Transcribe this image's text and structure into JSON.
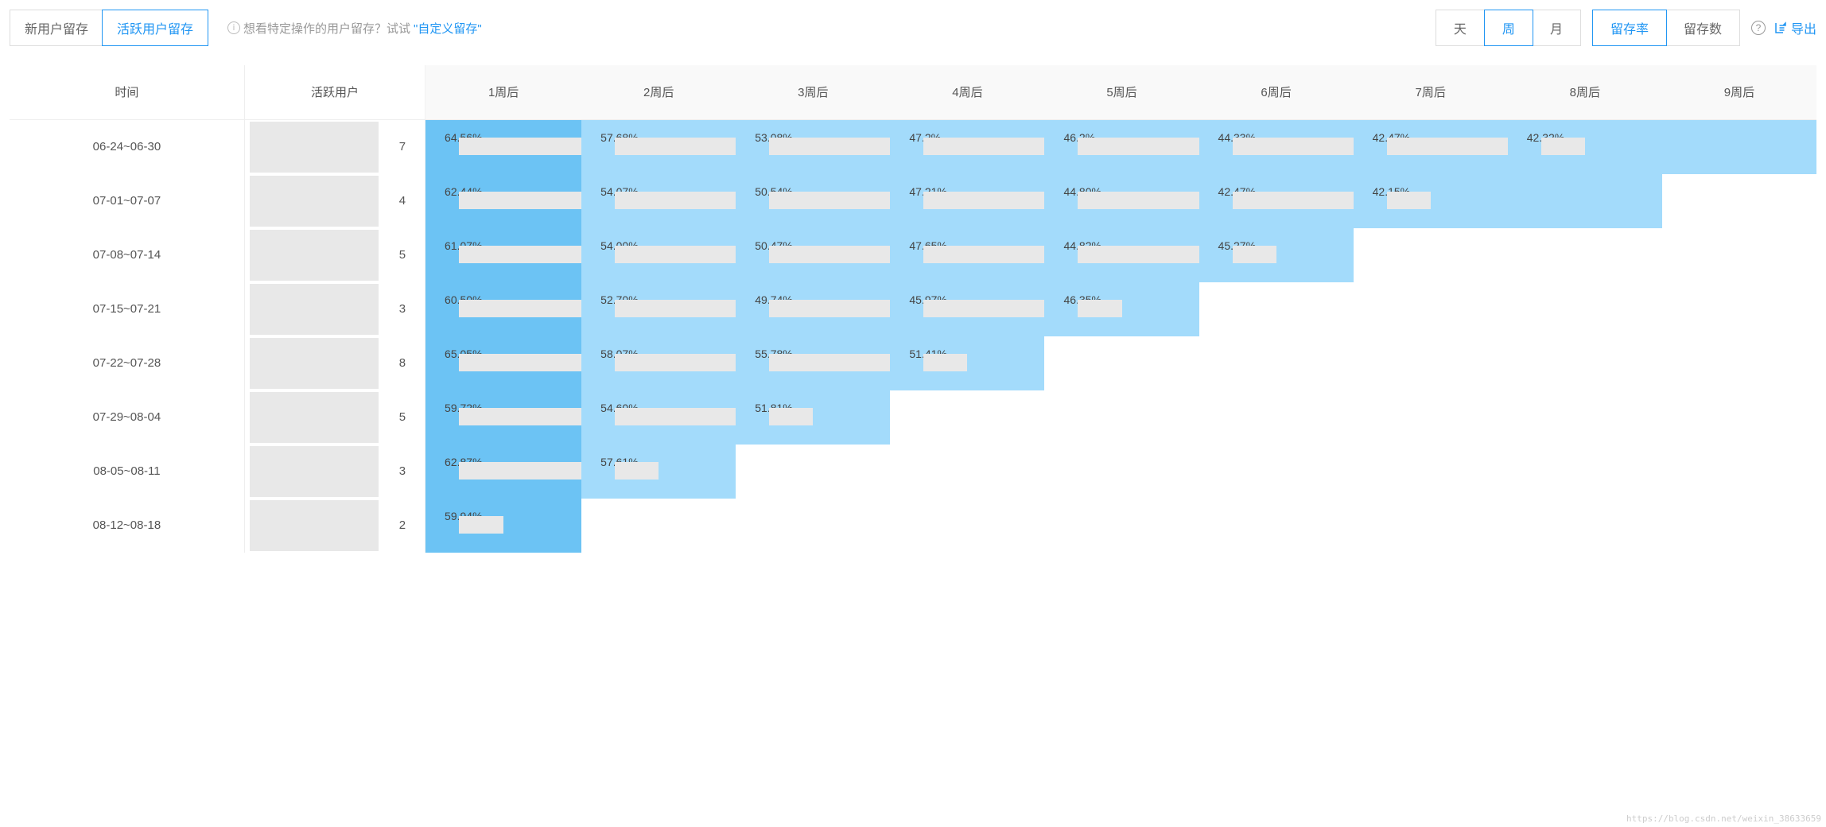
{
  "tabs": {
    "new": "新用户留存",
    "active": "活跃用户留存",
    "selected": "active"
  },
  "hint": {
    "text": "想看特定操作的用户留存？试试",
    "link": "\"自定义留存\""
  },
  "period": {
    "day": "天",
    "week": "周",
    "month": "月",
    "selected": "week"
  },
  "metric": {
    "rate": "留存率",
    "count": "留存数",
    "selected": "rate"
  },
  "export_label": "导出",
  "headers": {
    "time": "时间",
    "users": "活跃用户",
    "weeks": [
      "1周后",
      "2周后",
      "3周后",
      "4周后",
      "5周后",
      "6周后",
      "7周后",
      "8周后",
      "9周后"
    ]
  },
  "colors": {
    "dark": "#6cc3f4",
    "light": "#a3dbfb",
    "mask": "#e8e8e8"
  },
  "rows": [
    {
      "time": "06-24~06-30",
      "users_suffix": "7",
      "cells": [
        {
          "v": "64.56%",
          "shade": "dark",
          "mask": true,
          "maskEnd": false
        },
        {
          "v": "57.68%",
          "shade": "light",
          "mask": true,
          "maskEnd": false
        },
        {
          "v": "53.08%",
          "shade": "light",
          "mask": true,
          "maskEnd": false
        },
        {
          "v": "47.2%",
          "shade": "light",
          "mask": true,
          "maskEnd": false
        },
        {
          "v": "46.2%",
          "shade": "light",
          "mask": true,
          "maskEnd": false
        },
        {
          "v": "44.33%",
          "shade": "light",
          "mask": true,
          "maskEnd": false
        },
        {
          "v": "42.47%",
          "shade": "light",
          "mask": true,
          "maskEnd": false
        },
        {
          "v": "42.32%",
          "shade": "light",
          "mask": true,
          "maskEnd": true
        },
        {
          "v": "",
          "shade": "light",
          "mask": false
        }
      ]
    },
    {
      "time": "07-01~07-07",
      "users_suffix": "4",
      "cells": [
        {
          "v": "62.44%",
          "shade": "dark",
          "mask": true,
          "maskEnd": false
        },
        {
          "v": "54.07%",
          "shade": "light",
          "mask": true,
          "maskEnd": false
        },
        {
          "v": "50.54%",
          "shade": "light",
          "mask": true,
          "maskEnd": false
        },
        {
          "v": "47.21%",
          "shade": "light",
          "mask": true,
          "maskEnd": false
        },
        {
          "v": "44.80%",
          "shade": "light",
          "mask": true,
          "maskEnd": false
        },
        {
          "v": "42.47%",
          "shade": "light",
          "mask": true,
          "maskEnd": false
        },
        {
          "v": "42.15%",
          "shade": "light",
          "mask": true,
          "maskEnd": true
        },
        {
          "v": "",
          "shade": "light",
          "mask": false
        }
      ]
    },
    {
      "time": "07-08~07-14",
      "users_suffix": "5",
      "cells": [
        {
          "v": "61.07%",
          "shade": "dark",
          "mask": true,
          "maskEnd": false
        },
        {
          "v": "54.00%",
          "shade": "light",
          "mask": true,
          "maskEnd": false
        },
        {
          "v": "50.47%",
          "shade": "light",
          "mask": true,
          "maskEnd": false
        },
        {
          "v": "47.65%",
          "shade": "light",
          "mask": true,
          "maskEnd": false
        },
        {
          "v": "44.82%",
          "shade": "light",
          "mask": true,
          "maskEnd": false
        },
        {
          "v": "45.27%",
          "shade": "light",
          "mask": true,
          "maskEnd": true
        }
      ]
    },
    {
      "time": "07-15~07-21",
      "users_suffix": "3",
      "cells": [
        {
          "v": "60.50%",
          "shade": "dark",
          "mask": true,
          "maskEnd": false
        },
        {
          "v": "52.70%",
          "shade": "light",
          "mask": true,
          "maskEnd": false
        },
        {
          "v": "49.74%",
          "shade": "light",
          "mask": true,
          "maskEnd": false
        },
        {
          "v": "45.97%",
          "shade": "light",
          "mask": true,
          "maskEnd": false
        },
        {
          "v": "46.35%",
          "shade": "light",
          "mask": true,
          "maskEnd": true
        }
      ]
    },
    {
      "time": "07-22~07-28",
      "users_suffix": "8",
      "cells": [
        {
          "v": "65.05%",
          "shade": "dark",
          "mask": true,
          "maskEnd": false
        },
        {
          "v": "58.07%",
          "shade": "light",
          "mask": true,
          "maskEnd": false
        },
        {
          "v": "55.78%",
          "shade": "light",
          "mask": true,
          "maskEnd": false
        },
        {
          "v": "51.41%",
          "shade": "light",
          "mask": true,
          "maskEnd": true
        }
      ]
    },
    {
      "time": "07-29~08-04",
      "users_suffix": "5",
      "cells": [
        {
          "v": "59.72%",
          "shade": "dark",
          "mask": true,
          "maskEnd": false
        },
        {
          "v": "54.60%",
          "shade": "light",
          "mask": true,
          "maskEnd": false
        },
        {
          "v": "51.81%",
          "shade": "light",
          "mask": true,
          "maskEnd": true
        }
      ]
    },
    {
      "time": "08-05~08-11",
      "users_suffix": "3",
      "cells": [
        {
          "v": "62.87%",
          "shade": "dark",
          "mask": true,
          "maskEnd": false
        },
        {
          "v": "57.61%",
          "shade": "light",
          "mask": true,
          "maskEnd": true
        }
      ]
    },
    {
      "time": "08-12~08-18",
      "users_suffix": "2",
      "cells": [
        {
          "v": "59.94%",
          "shade": "dark",
          "mask": true,
          "maskEnd": true
        }
      ]
    }
  ],
  "watermark": "https://blog.csdn.net/weixin_38633659"
}
